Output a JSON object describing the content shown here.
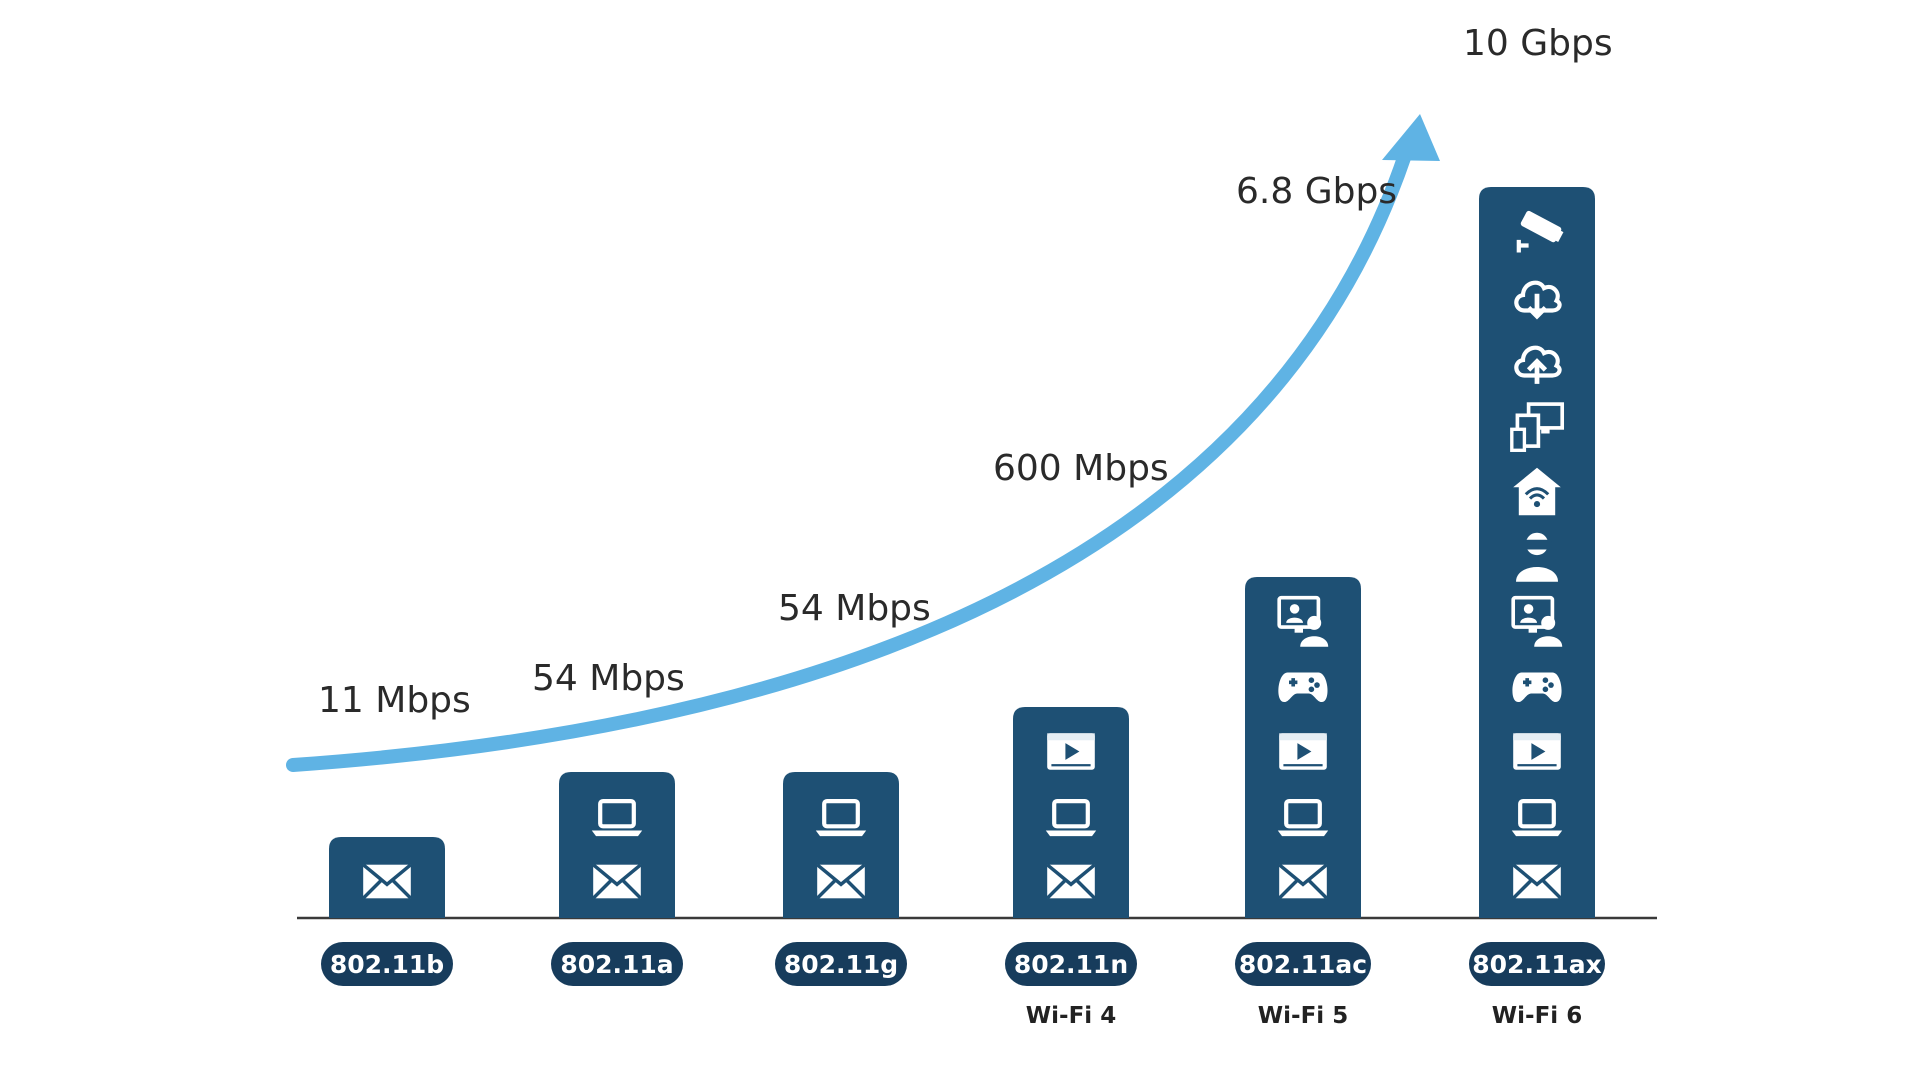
{
  "colors": {
    "bar": "#1e5074",
    "pill": "#173c5c",
    "arrow": "#5fb3e4",
    "baseline": "#3a3a3a",
    "icon": "#ffffff",
    "text": "#2a2a2a"
  },
  "standards": [
    {
      "standard": "802.11b",
      "generation": "",
      "speed": "11 Mbps",
      "icons": [
        "envelope-icon"
      ]
    },
    {
      "standard": "802.11a",
      "generation": "",
      "speed": "54 Mbps",
      "icons": [
        "envelope-icon",
        "laptop-icon"
      ]
    },
    {
      "standard": "802.11g",
      "generation": "",
      "speed": "54 Mbps",
      "icons": [
        "envelope-icon",
        "laptop-icon"
      ]
    },
    {
      "standard": "802.11n",
      "generation": "Wi-Fi 4",
      "speed": "600 Mbps",
      "icons": [
        "envelope-icon",
        "laptop-icon",
        "video-player-icon"
      ]
    },
    {
      "standard": "802.11ac",
      "generation": "Wi-Fi 5",
      "speed": "6.8 Gbps",
      "icons": [
        "envelope-icon",
        "laptop-icon",
        "video-player-icon",
        "gamepad-icon",
        "video-conference-icon"
      ]
    },
    {
      "standard": "802.11ax",
      "generation": "Wi-Fi 6",
      "speed": "10 Gbps",
      "icons": [
        "envelope-icon",
        "laptop-icon",
        "video-player-icon",
        "gamepad-icon",
        "video-conference-icon",
        "vr-headset-icon",
        "smart-home-wifi-icon",
        "multi-device-icon",
        "cloud-upload-icon",
        "cloud-download-icon",
        "security-camera-icon"
      ]
    }
  ]
}
